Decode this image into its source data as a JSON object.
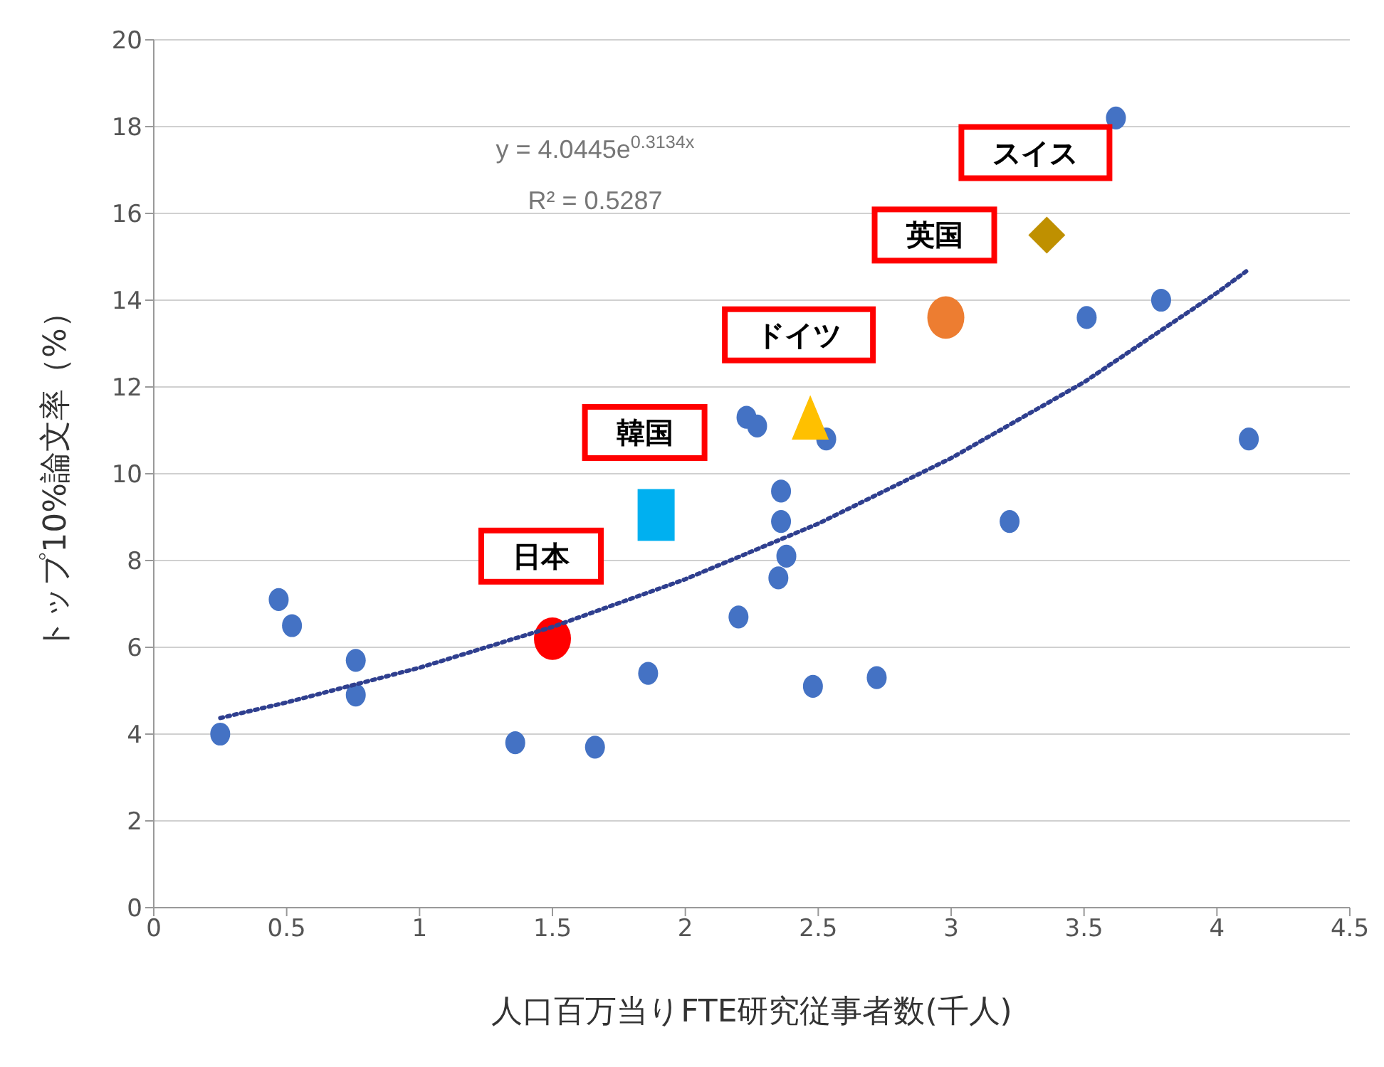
{
  "chart_data": {
    "type": "scatter",
    "xlabel": "人口百万当りFTE研究従事者数(千人)",
    "ylabel": "トップ10%論文率（%）",
    "xlim": [
      0,
      4.5
    ],
    "xticks": [
      0,
      0.5,
      1,
      1.5,
      2,
      2.5,
      3,
      3.5,
      4,
      4.5
    ],
    "ylim": [
      0,
      20
    ],
    "yticks": [
      0,
      2,
      4,
      6,
      8,
      10,
      12,
      14,
      16,
      18,
      20
    ],
    "grid": "y",
    "annotations": [
      "y = 4.0445e$^{0.3134x}$",
      "R² = 0.5287"
    ],
    "series": [
      {
        "color": "#4472c4",
        "marker": "circle",
        "x": [
          0.25,
          0.47,
          0.52,
          0.76,
          0.76,
          1.36,
          1.66,
          1.86,
          2.2,
          2.23,
          2.27,
          2.36,
          2.36,
          2.38,
          2.35,
          2.48,
          2.53,
          2.72,
          3.22,
          3.62,
          3.51,
          3.79,
          4.12
        ],
        "values": [
          4.0,
          7.1,
          6.5,
          5.7,
          4.9,
          3.8,
          3.7,
          5.4,
          6.7,
          11.3,
          11.1,
          9.6,
          8.9,
          8.1,
          7.6,
          5.1,
          10.8,
          5.3,
          8.9,
          18.2,
          13.6,
          14.0,
          10.8
        ]
      },
      {
        "type": "line",
        "color": "#2f3f8f",
        "marker": "none",
        "line_style": "dotted",
        "x": [
          0.25,
          0.5,
          1,
          1.5,
          2,
          2.5,
          3,
          3.5,
          4,
          4.12
        ],
        "values": [
          4.37,
          4.73,
          5.53,
          6.47,
          7.57,
          8.85,
          10.36,
          12.11,
          14.17,
          14.71
        ]
      },
      {
        "name": "日本",
        "color": "#ff0000",
        "marker": "circle",
        "x": [
          1.5
        ],
        "values": [
          6.2
        ]
      },
      {
        "name": "韓国",
        "color": "#00b0f0",
        "marker": "square",
        "x": [
          1.89
        ],
        "values": [
          9.05
        ]
      },
      {
        "name": "ドイツ",
        "color": "#ffc000",
        "marker": "triangle",
        "x": [
          2.47
        ],
        "values": [
          11.3
        ]
      },
      {
        "name": "英国",
        "color": "#ed7d31",
        "marker": "circle",
        "x": [
          2.98
        ],
        "values": [
          13.6
        ]
      },
      {
        "name": "スイス",
        "color": "#bf9000",
        "marker": "diamond",
        "x": [
          3.36
        ],
        "values": [
          15.5
        ]
      }
    ]
  }
}
